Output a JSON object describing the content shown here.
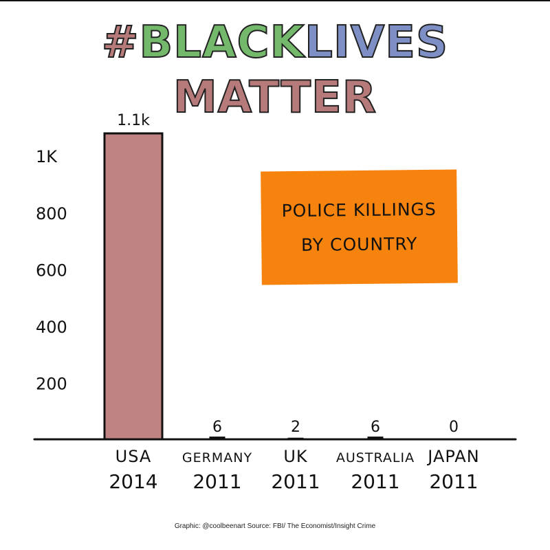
{
  "headline": {
    "parts": [
      {
        "text": "#",
        "color": "#b77a7a"
      },
      {
        "text": "BLACK",
        "color": "#74b96b"
      },
      {
        "text": "LIVES",
        "color": "#7d8fc4"
      },
      {
        "text": "MATTER",
        "color": "#b77a7a"
      }
    ]
  },
  "title_box": {
    "line1": "POLICE KILLINGS",
    "line2": "BY COUNTRY",
    "color": "#f7830f"
  },
  "credit": "Graphic: @coolbeenart  Source: FBI/ The Economist/Insight Crime",
  "chart_data": {
    "type": "bar",
    "title": "POLICE KILLINGS BY COUNTRY",
    "categories": [
      "USA",
      "GERMANY",
      "UK",
      "AUSTRALIA",
      "JAPAN"
    ],
    "years": [
      "2014",
      "2011",
      "2011",
      "2011",
      "2011"
    ],
    "values": [
      1100,
      6,
      2,
      6,
      0
    ],
    "data_labels": [
      "1.1k",
      "6",
      "2",
      "6",
      "0"
    ],
    "ylim": [
      0,
      1100
    ],
    "yticks": [
      200,
      400,
      600,
      800,
      1000
    ],
    "ytick_labels": [
      "200",
      "400",
      "600",
      "800",
      "1K"
    ],
    "bar_color": "#c08383",
    "grid": false,
    "legend": "none"
  }
}
